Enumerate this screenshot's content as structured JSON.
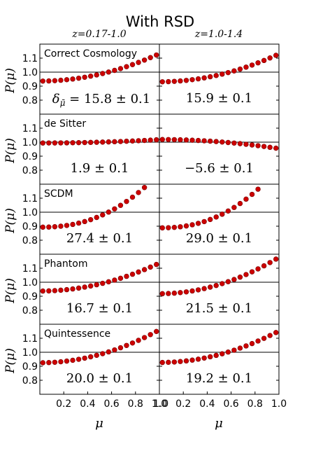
{
  "title": "With RSD",
  "columns": [
    {
      "header": "z=0.17-1.0"
    },
    {
      "header": "z=1.0-1.4"
    }
  ],
  "ylabel": "P(μ)",
  "xlabel": "μ",
  "chart_data": {
    "type": "scatter",
    "title": "With RSD",
    "xlabel": "μ",
    "ylabel": "P(μ)",
    "xlim": [
      0.0,
      1.0
    ],
    "ylim": [
      0.7,
      1.2
    ],
    "yticks": [
      0.8,
      0.9,
      1.0,
      1.1
    ],
    "xticks": {
      "left": [
        0.2,
        0.4,
        0.6,
        0.8,
        1.0
      ],
      "right": [
        1.0,
        0.2,
        0.4,
        0.6,
        0.8,
        1.0
      ]
    },
    "xtick_labels": {
      "left": [
        "0.2",
        "0.4",
        "0.6",
        "0.8",
        "1.0"
      ],
      "right": [
        "1.0",
        "0.2",
        "0.4",
        "0.6",
        "0.8",
        "1.0"
      ]
    },
    "reference_line": 1.0,
    "marker_color": "#cc0000",
    "x": [
      0.025,
      0.075,
      0.125,
      0.175,
      0.225,
      0.275,
      0.325,
      0.375,
      0.425,
      0.475,
      0.525,
      0.575,
      0.625,
      0.675,
      0.725,
      0.775,
      0.825,
      0.875,
      0.925,
      0.975
    ],
    "rows": [
      {
        "name": "Correct Cosmology",
        "panels": [
          {
            "label": "δ_μ̄ = 15.8 ± 0.1",
            "a": 0.936,
            "b": 0.196,
            "p": 2
          },
          {
            "label": "15.9 ± 0.1",
            "a": 0.931,
            "b": 0.199,
            "p": 2
          }
        ]
      },
      {
        "name": "de Sitter",
        "panels": [
          {
            "label": "1.9 ± 0.1",
            "a": 0.994,
            "b": 0.024,
            "p": 2
          },
          {
            "label": "−5.6 ± 0.1",
            "a": 1.019,
            "b": -0.065,
            "p": 2
          }
        ]
      },
      {
        "name": "SCDM",
        "panels": [
          {
            "label": "27.4 ± 0.1",
            "a": 0.893,
            "b": 0.385,
            "p": 2.3
          },
          {
            "label": "29.0 ± 0.1",
            "a": 0.888,
            "b": 0.43,
            "p": 2.3
          }
        ]
      },
      {
        "name": "Phantom",
        "panels": [
          {
            "label": "16.7 ± 0.1",
            "a": 0.937,
            "b": 0.2,
            "p": 2
          },
          {
            "label": "21.5 ± 0.1",
            "a": 0.918,
            "b": 0.26,
            "p": 2
          }
        ]
      },
      {
        "name": "Quintessence",
        "panels": [
          {
            "label": "20.0 ± 0.1",
            "a": 0.925,
            "b": 0.235,
            "p": 2
          },
          {
            "label": "19.2 ± 0.1",
            "a": 0.927,
            "b": 0.225,
            "p": 2
          }
        ]
      }
    ]
  }
}
